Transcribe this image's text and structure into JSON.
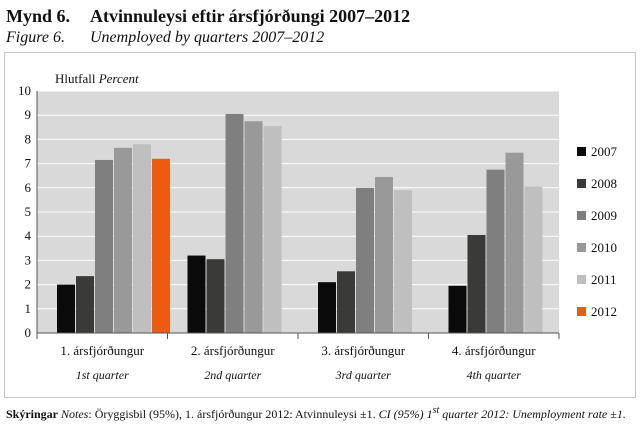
{
  "figure": {
    "label_is": "Mynd 6.",
    "title_is": "Atvinnuleysi eftir ársfjórðungi 2007–2012",
    "label_en": "Figure 6.",
    "title_en": "Unemployed by quarters 2007–2012"
  },
  "footnote": {
    "label": "Skýringar",
    "notes_label": "Notes",
    "text_is": ": Öryggisbil (95%), 1. ársfjórðungur 2012: Atvinnuleysi ±1.",
    "text_en_pre": "CI (95%) 1",
    "text_en_sup": "st",
    "text_en_post": " quarter 2012: Unemployment rate ±1."
  },
  "colors": {
    "plot_background": "#d9d9d9",
    "gridline": "#ffffff",
    "axis": "#555555"
  },
  "chart_data": {
    "type": "bar",
    "ylabel_is": "Hlutfall",
    "ylabel_en": "Percent",
    "ylim": [
      0,
      10
    ],
    "yticks": [
      0,
      1,
      2,
      3,
      4,
      5,
      6,
      7,
      8,
      9,
      10
    ],
    "grid": true,
    "legend_position": "right",
    "categories": [
      "1. ársfjórðungur",
      "2. ársfjórðungur",
      "3. ársfjórðungur",
      "4. ársfjórðungur"
    ],
    "categories_en": [
      "1st quarter",
      "2nd quarter",
      "3rd quarter",
      "4th quarter"
    ],
    "series": [
      {
        "name": "2007",
        "color": "#0a0a0a",
        "values": [
          2.0,
          3.2,
          2.1,
          1.95
        ]
      },
      {
        "name": "2008",
        "color": "#3a3a38",
        "values": [
          2.35,
          3.05,
          2.55,
          4.05
        ]
      },
      {
        "name": "2009",
        "color": "#7f7f7f",
        "values": [
          7.15,
          9.05,
          6.0,
          6.75
        ]
      },
      {
        "name": "2010",
        "color": "#999999",
        "values": [
          7.65,
          8.75,
          6.45,
          7.45
        ]
      },
      {
        "name": "2011",
        "color": "#bfbfbf",
        "values": [
          7.8,
          8.55,
          5.9,
          6.05
        ]
      },
      {
        "name": "2012",
        "color": "#ee5a12",
        "values": [
          7.2,
          null,
          null,
          null
        ]
      }
    ]
  }
}
